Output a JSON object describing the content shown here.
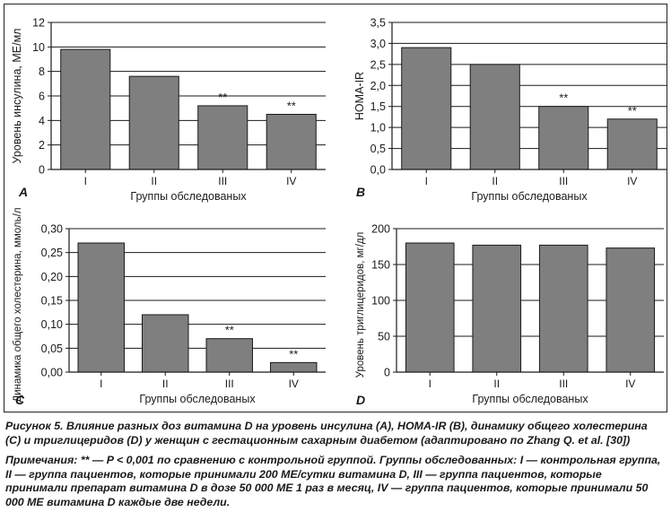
{
  "figure_caption": "Рисунок 5. Влияние разных доз витамина D на уровень инсулина (A), HOMA-IR (B), динамику общего холестерина (C) и триглицеридов (D) у женщин с гестационным сахарным диабетом (адаптировано по Zhang Q. et al. [30])",
  "note": "Примечания: ** — P < 0,001 по сравнению с контрольной группой. Группы обследованных: I — контрольная группа, II — группа пациентов, которые принимали 200 МЕ/сутки витамина D, III — группа пациентов, которые принимали препарат витамина D в дозе 50 000 МЕ 1 раз в месяц, IV — группа пациентов, которые принимали 50 000 МЕ витамина D каждые две недели.",
  "colors": {
    "bar": "#7f7f7f",
    "bar_stroke": "#1a1a1a",
    "grid": "#1a1a1a"
  },
  "chart_data": [
    {
      "type": "bar",
      "panel_label": "A",
      "categories": [
        "I",
        "II",
        "III",
        "IV"
      ],
      "values": [
        9.8,
        7.6,
        5.2,
        4.5
      ],
      "annotations": [
        "",
        "",
        "**",
        "**"
      ],
      "xlabel": "Группы обследованых",
      "ylabel": "Уровень инсулина, МЕ/мл",
      "ylim": [
        0,
        12
      ],
      "yticks": [
        "0",
        "2",
        "4",
        "6",
        "8",
        "10",
        "12"
      ],
      "grid": true
    },
    {
      "type": "bar",
      "panel_label": "B",
      "categories": [
        "I",
        "II",
        "III",
        "IV"
      ],
      "values": [
        2.9,
        2.5,
        1.5,
        1.2
      ],
      "annotations": [
        "",
        "",
        "**",
        "**"
      ],
      "xlabel": "Группы обследованых",
      "ylabel": "HOMA-IR",
      "ylim": [
        0,
        3.5
      ],
      "yticks": [
        "0,0",
        "0,5",
        "1,0",
        "1,5",
        "2,0",
        "2,5",
        "3,0",
        "3,5"
      ],
      "grid": true
    },
    {
      "type": "bar",
      "panel_label": "C",
      "categories": [
        "I",
        "II",
        "III",
        "IV"
      ],
      "values": [
        0.27,
        0.12,
        0.07,
        0.02
      ],
      "annotations": [
        "",
        "",
        "**",
        "**"
      ],
      "xlabel": "Группы обследованых",
      "ylabel": "Динамика общего холестерина, ммоль/л",
      "ylim": [
        0,
        0.3
      ],
      "yticks": [
        "0,00",
        "0,05",
        "0,10",
        "0,15",
        "0,20",
        "0,25",
        "0,30"
      ],
      "grid": true
    },
    {
      "type": "bar",
      "panel_label": "D",
      "categories": [
        "I",
        "II",
        "III",
        "IV"
      ],
      "values": [
        180,
        177,
        177,
        173
      ],
      "annotations": [
        "",
        "",
        "",
        ""
      ],
      "xlabel": "Группы обследованых",
      "ylabel": "Уровень триглицеридов, мг/дл",
      "ylim": [
        0,
        200
      ],
      "yticks": [
        "0",
        "50",
        "100",
        "150",
        "200"
      ],
      "grid": true
    }
  ]
}
